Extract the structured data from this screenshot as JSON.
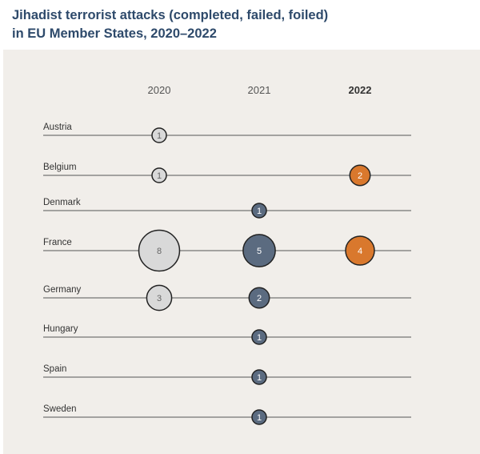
{
  "title_lines": [
    "Jihadist terrorist attacks (completed, failed, foiled)",
    "in EU Member States, 2020–2022"
  ],
  "chart_data": {
    "type": "scatter",
    "title": "Jihadist terrorist attacks (completed, failed, foiled) in EU Member States, 2020–2022",
    "years": [
      "2020",
      "2021",
      "2022"
    ],
    "highlight_year": "2022",
    "countries": [
      "Austria",
      "Belgium",
      "Denmark",
      "France",
      "Germany",
      "Hungary",
      "Spain",
      "Sweden"
    ],
    "values": [
      {
        "country": "Austria",
        "2020": 1,
        "2021": null,
        "2022": null
      },
      {
        "country": "Belgium",
        "2020": 1,
        "2021": null,
        "2022": 2
      },
      {
        "country": "Denmark",
        "2020": null,
        "2021": 1,
        "2022": null
      },
      {
        "country": "France",
        "2020": 8,
        "2021": 5,
        "2022": 4
      },
      {
        "country": "Germany",
        "2020": 3,
        "2021": 2,
        "2022": null
      },
      {
        "country": "Hungary",
        "2020": null,
        "2021": 1,
        "2022": null
      },
      {
        "country": "Spain",
        "2020": null,
        "2021": 1,
        "2022": null
      },
      {
        "country": "Sweden",
        "2020": null,
        "2021": 1,
        "2022": null
      }
    ],
    "colors": {
      "2020": "#d9d9d9",
      "2021": "#5b6b80",
      "2022": "#d9782d",
      "panel": "#f1eeea",
      "line": "#555555",
      "title": "#2e4a6b"
    }
  }
}
